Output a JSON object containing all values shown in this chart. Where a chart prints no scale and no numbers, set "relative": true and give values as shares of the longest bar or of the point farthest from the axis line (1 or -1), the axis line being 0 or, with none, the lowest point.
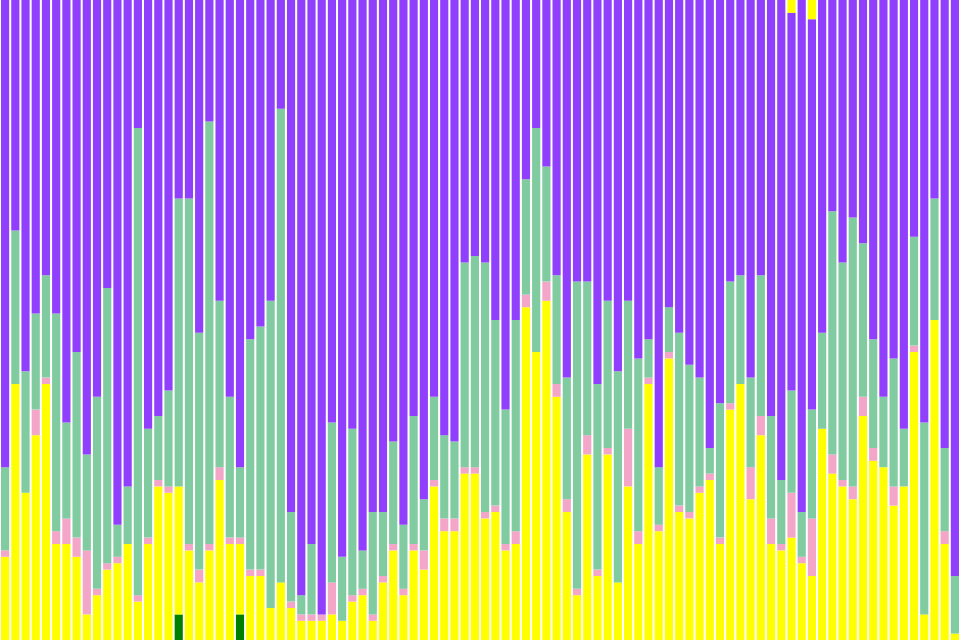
{
  "chart_data": {
    "type": "bar",
    "stacked": true,
    "relative": true,
    "categories": [
      null,
      null,
      null,
      null,
      null,
      null,
      null,
      null,
      null,
      null,
      null,
      null,
      null,
      null,
      null,
      null,
      null,
      null,
      null,
      null,
      null,
      null,
      null,
      null,
      null,
      null,
      null,
      null,
      null,
      null,
      null,
      null,
      null,
      null,
      null,
      null,
      null,
      null,
      null,
      null,
      null,
      null,
      null,
      null,
      null,
      null,
      null,
      null,
      null,
      null,
      null,
      null,
      null,
      null,
      null,
      null,
      null,
      null,
      null,
      null,
      null,
      null,
      null,
      null,
      null,
      null,
      null,
      null,
      null,
      null,
      null,
      null,
      null,
      null,
      null,
      null,
      null,
      null,
      null,
      null,
      null,
      null,
      null,
      null,
      null,
      null,
      null,
      null,
      null,
      null,
      null,
      null,
      null,
      null
    ],
    "series": [
      {
        "color": "#008000",
        "values": [
          0,
          0,
          0,
          0,
          0,
          0,
          0,
          0,
          0,
          0,
          0,
          0,
          0,
          0,
          0,
          0,
          0,
          0.04,
          0,
          0,
          0,
          0,
          0,
          0.04,
          0,
          0,
          0,
          0,
          0,
          0,
          0,
          0,
          0,
          0,
          0,
          0,
          0,
          0,
          0,
          0,
          0,
          0,
          0,
          0,
          0,
          0,
          0,
          0,
          0,
          0,
          0,
          0,
          0,
          0,
          0,
          0,
          0,
          0,
          0,
          0,
          0,
          0,
          0,
          0,
          0,
          0,
          0,
          0,
          0,
          0,
          0,
          0,
          0,
          0,
          0,
          0,
          0,
          0,
          0,
          0,
          0,
          0,
          0,
          0,
          0,
          0,
          0,
          0,
          0,
          0,
          0,
          0,
          0,
          0
        ]
      },
      {
        "color": "#ffff00",
        "values": [
          0.13,
          0.4,
          0.23,
          0.32,
          0.4,
          0.15,
          0.15,
          0.13,
          0.04,
          0.07,
          0.11,
          0.12,
          0.15,
          0.06,
          0.15,
          0.24,
          0.23,
          0.2,
          0.14,
          0.09,
          0.14,
          0.25,
          0.15,
          0.11,
          0.1,
          0.1,
          0.05,
          0.09,
          0.05,
          0.03,
          0.03,
          0.03,
          0.04,
          0.03,
          0.06,
          0.07,
          0.03,
          0.09,
          0.14,
          0.07,
          0.14,
          0.11,
          0.24,
          0.17,
          0.17,
          0.26,
          0.26,
          0.19,
          0.2,
          0.14,
          0.15,
          0.52,
          0.45,
          0.53,
          0.38,
          0.2,
          0.07,
          0.29,
          0.1,
          0.29,
          0.09,
          0.24,
          0.15,
          0.4,
          0.17,
          0.44,
          0.2,
          0.19,
          0.23,
          0.25,
          0.15,
          0.36,
          0.4,
          0.22,
          0.32,
          0.15,
          0.14,
          0.16,
          0.12,
          0.1,
          0.33,
          0.26,
          0.24,
          0.22,
          0.35,
          0.28,
          0.27,
          0.21,
          0.24,
          0.45,
          0.04,
          0.5,
          0.15,
          0.01
        ]
      },
      {
        "color": "#f4a6c8",
        "values": [
          0.01,
          0,
          0,
          0.04,
          0.01,
          0.02,
          0.04,
          0.03,
          0.1,
          0.01,
          0.01,
          0.01,
          0,
          0.01,
          0.01,
          0.01,
          0.01,
          0,
          0.01,
          0.02,
          0.01,
          0.02,
          0.01,
          0.01,
          0.01,
          0.01,
          0,
          0,
          0.01,
          0.01,
          0.01,
          0.01,
          0.05,
          0,
          0.01,
          0.01,
          0.01,
          0.01,
          0.01,
          0.01,
          0.01,
          0.03,
          0.01,
          0.02,
          0.02,
          0.01,
          0.01,
          0.01,
          0.01,
          0.01,
          0.02,
          0.02,
          0,
          0.03,
          0.02,
          0.02,
          0.01,
          0.03,
          0.01,
          0.01,
          0,
          0.09,
          0.02,
          0.01,
          0.01,
          0.01,
          0.01,
          0.01,
          0.01,
          0.01,
          0.01,
          0.01,
          0,
          0.05,
          0.03,
          0.04,
          0.01,
          0.07,
          0.01,
          0.09,
          0,
          0.03,
          0.01,
          0.02,
          0.03,
          0.02,
          0,
          0.03,
          0,
          0.01,
          0,
          0,
          0.02,
          0
        ]
      },
      {
        "color": "#80cba0",
        "values": [
          0.13,
          0.24,
          0.19,
          0.15,
          0.16,
          0.34,
          0.15,
          0.29,
          0.15,
          0.3,
          0.43,
          0.05,
          0.09,
          0.73,
          0.17,
          0.1,
          0.15,
          0.45,
          0.54,
          0.37,
          0.66,
          0.26,
          0.22,
          0.11,
          0.36,
          0.38,
          0.48,
          0.74,
          0.14,
          0.03,
          0.11,
          0,
          0.25,
          0.1,
          0.26,
          0.06,
          0.16,
          0.1,
          0.16,
          0.1,
          0.2,
          0.08,
          0.13,
          0.13,
          0.12,
          0.32,
          0.33,
          0.39,
          0.29,
          0.21,
          0.33,
          0.18,
          0.35,
          0.18,
          0.17,
          0.19,
          0.48,
          0.24,
          0.29,
          0.23,
          0.33,
          0.2,
          0.27,
          0.06,
          0.09,
          0.07,
          0.27,
          0.23,
          0.17,
          0.04,
          0.21,
          0.19,
          0.17,
          0.14,
          0.22,
          0.16,
          0.1,
          0.16,
          0.07,
          0.17,
          0.15,
          0.38,
          0.34,
          0.42,
          0.24,
          0.17,
          0.11,
          0.2,
          0.09,
          0.17,
          0.3,
          0.19,
          0.13,
          0.09
        ]
      },
      {
        "color": "#9040fc",
        "values": [
          0.73,
          0.36,
          0.58,
          0.49,
          0.43,
          0.49,
          0.66,
          0.55,
          0.71,
          0.62,
          0.45,
          0.82,
          0.76,
          0.2,
          0.67,
          0.65,
          0.61,
          0.31,
          0.31,
          0.52,
          0.19,
          0.47,
          0.62,
          0.73,
          0.53,
          0.51,
          0.47,
          0.17,
          0.8,
          0.93,
          0.85,
          0.96,
          0.66,
          0.87,
          0.67,
          0.86,
          0.8,
          0.8,
          0.69,
          0.82,
          0.65,
          0.78,
          0.62,
          0.68,
          0.69,
          0.41,
          0.4,
          0.41,
          0.5,
          0.64,
          0.5,
          0.28,
          0.2,
          0.26,
          0.43,
          0.59,
          0.44,
          0.44,
          0.6,
          0.47,
          0.58,
          0.47,
          0.56,
          0.53,
          0.73,
          0.48,
          0.52,
          0.57,
          0.59,
          0.7,
          0.63,
          0.44,
          0.43,
          0.59,
          0.43,
          0.65,
          0.75,
          0.59,
          0.8,
          0.61,
          0.52,
          0.33,
          0.41,
          0.34,
          0.38,
          0.53,
          0.62,
          0.56,
          0.67,
          0.37,
          0.66,
          0.31,
          0.7,
          0.9
        ]
      },
      {
        "color": "#ffff00",
        "values": [
          0,
          0,
          0,
          0,
          0,
          0,
          0,
          0,
          0,
          0,
          0,
          0,
          0,
          0,
          0,
          0,
          0,
          0,
          0,
          0,
          0,
          0,
          0,
          0,
          0,
          0,
          0,
          0,
          0,
          0,
          0,
          0,
          0,
          0,
          0,
          0,
          0,
          0,
          0,
          0,
          0,
          0,
          0,
          0,
          0,
          0,
          0,
          0,
          0,
          0,
          0,
          0,
          0,
          0,
          0,
          0,
          0,
          0,
          0,
          0,
          0,
          0,
          0,
          0,
          0,
          0,
          0,
          0,
          0,
          0,
          0,
          0,
          0,
          0,
          0,
          0,
          0,
          0.02,
          0,
          0.03,
          0,
          0,
          0,
          0,
          0,
          0,
          0,
          0,
          0,
          0,
          0,
          0,
          0,
          0
        ]
      }
    ]
  }
}
